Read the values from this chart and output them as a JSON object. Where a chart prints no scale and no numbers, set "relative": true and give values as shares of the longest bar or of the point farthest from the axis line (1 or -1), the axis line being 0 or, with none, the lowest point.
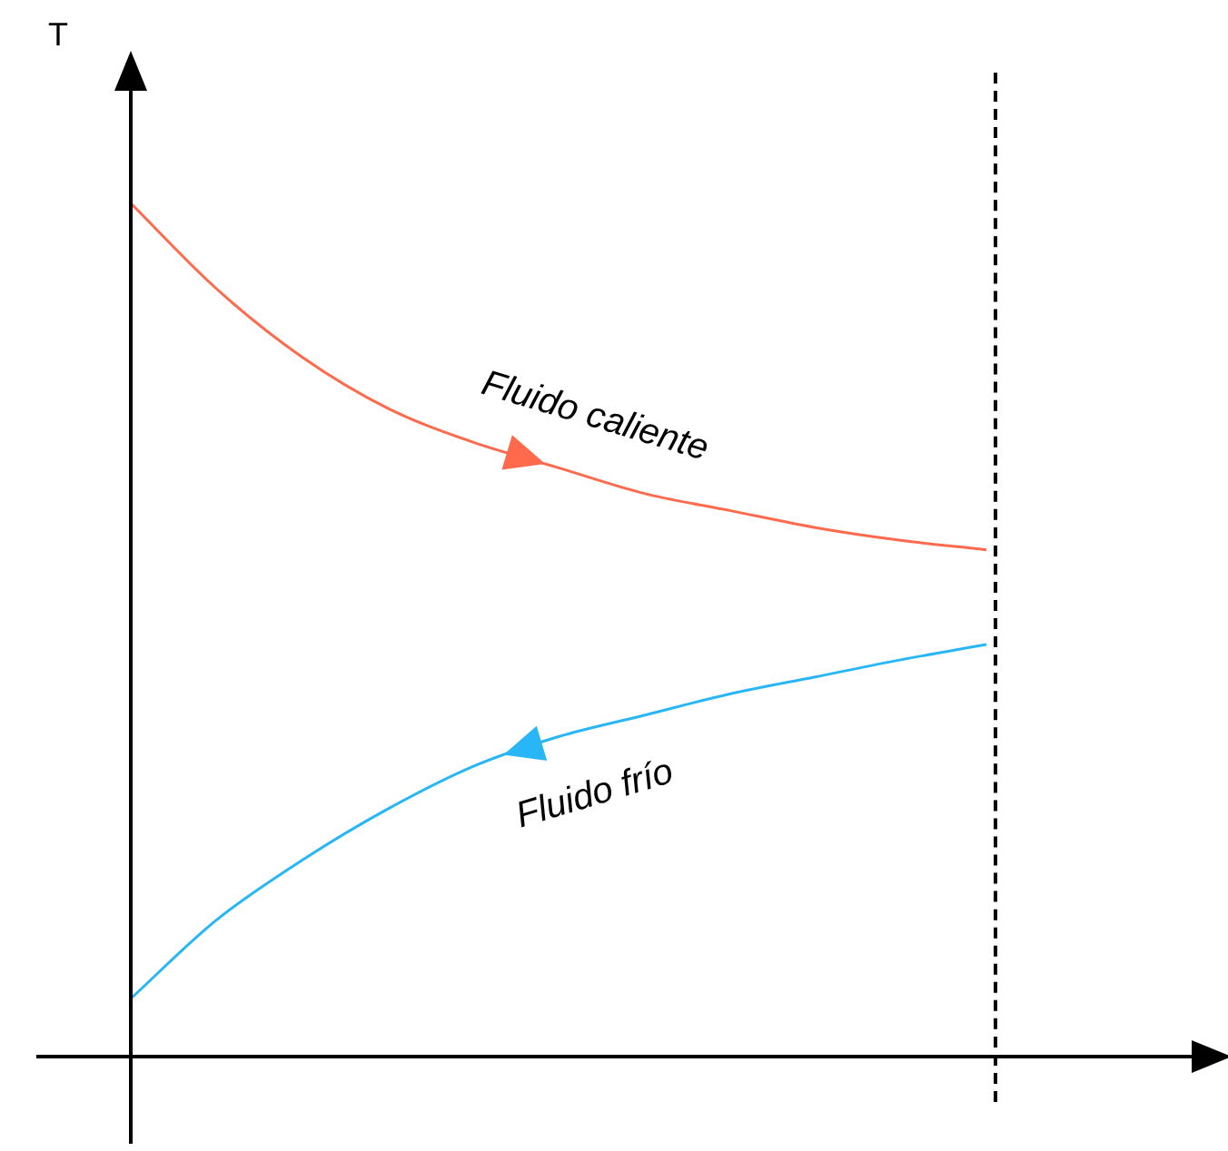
{
  "chart_data": {
    "type": "line",
    "ylabel": "T",
    "relative": true,
    "marker": "none",
    "line_style": "solid",
    "categories": [
      null,
      null,
      null,
      null,
      null,
      null,
      null,
      null,
      null,
      null,
      null
    ],
    "series": [
      {
        "name": "Fluido caliente",
        "color": "#ff6a4d",
        "values": [
          1.0,
          0.9,
          0.82,
          0.76,
          0.72,
          0.69,
          0.66,
          0.64,
          0.62,
          0.605,
          0.594
        ]
      },
      {
        "name": "Fluido frío",
        "color": "#29b6f6",
        "values": [
          0.068,
          0.16,
          0.23,
          0.29,
          0.34,
          0.375,
          0.4,
          0.425,
          0.445,
          0.465,
          0.483
        ]
      }
    ]
  }
}
